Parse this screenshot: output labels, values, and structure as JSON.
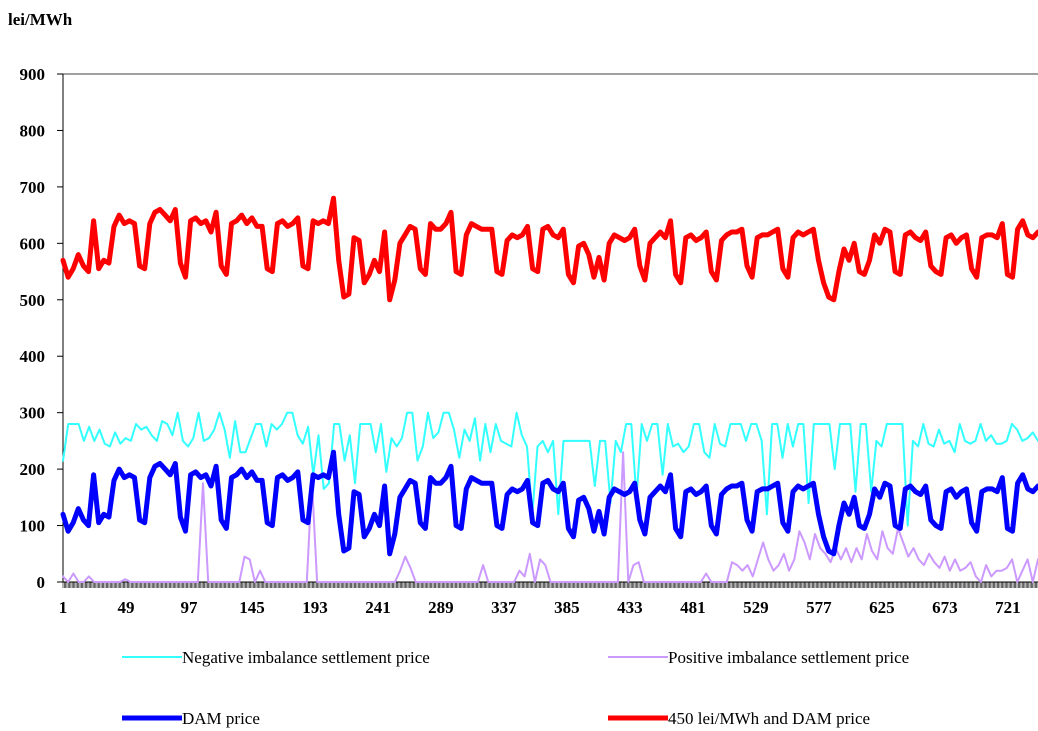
{
  "chart_data": {
    "type": "line",
    "ylabel": "lei/MWh",
    "ylim": [
      0,
      900
    ],
    "yticks": [
      0,
      100,
      200,
      300,
      400,
      500,
      600,
      700,
      800,
      900
    ],
    "xlim": [
      1,
      744
    ],
    "xticks": [
      1,
      49,
      97,
      145,
      193,
      241,
      289,
      337,
      385,
      433,
      481,
      529,
      577,
      625,
      673,
      721
    ],
    "grid": false,
    "legend_position": "bottom",
    "series": [
      {
        "name": "Negative imbalance settlement price",
        "color": "#33FFFF",
        "values": [
          215,
          280,
          280,
          280,
          250,
          275,
          250,
          270,
          245,
          240,
          265,
          245,
          255,
          250,
          280,
          270,
          275,
          260,
          250,
          285,
          280,
          260,
          300,
          250,
          240,
          255,
          300,
          250,
          255,
          270,
          300,
          270,
          220,
          285,
          230,
          230,
          255,
          280,
          280,
          240,
          280,
          270,
          280,
          300,
          300,
          260,
          245,
          275,
          190,
          260,
          165,
          175,
          280,
          280,
          215,
          260,
          175,
          280,
          280,
          280,
          230,
          280,
          195,
          255,
          240,
          255,
          300,
          300,
          215,
          240,
          300,
          255,
          265,
          300,
          300,
          270,
          220,
          270,
          250,
          290,
          215,
          280,
          230,
          280,
          250,
          245,
          240,
          300,
          260,
          240,
          120,
          240,
          250,
          230,
          250,
          120,
          250,
          250,
          250,
          250,
          250,
          250,
          170,
          250,
          250,
          140,
          250,
          230,
          280,
          280,
          150,
          280,
          250,
          280,
          280,
          190,
          280,
          240,
          245,
          230,
          240,
          280,
          280,
          230,
          220,
          280,
          245,
          240,
          280,
          280,
          280,
          250,
          280,
          280,
          250,
          120,
          280,
          280,
          220,
          280,
          240,
          280,
          280,
          140,
          280,
          280,
          280,
          280,
          200,
          280,
          280,
          280,
          160,
          280,
          280,
          160,
          250,
          240,
          280,
          280,
          280,
          280,
          100,
          250,
          240,
          280,
          245,
          240,
          270,
          245,
          250,
          230,
          280,
          250,
          245,
          250,
          280,
          250,
          260,
          245,
          245,
          250,
          280,
          270,
          250,
          255,
          265,
          250
        ]
      },
      {
        "name": "Positive imbalance settlement price",
        "color": "#CC99FF",
        "values": [
          10,
          0,
          15,
          0,
          0,
          10,
          0,
          0,
          0,
          0,
          0,
          0,
          5,
          0,
          0,
          0,
          0,
          0,
          0,
          0,
          0,
          0,
          0,
          0,
          0,
          0,
          0,
          175,
          0,
          0,
          0,
          0,
          0,
          0,
          0,
          45,
          40,
          0,
          20,
          0,
          0,
          0,
          0,
          0,
          0,
          0,
          0,
          0,
          180,
          0,
          0,
          0,
          0,
          0,
          0,
          0,
          0,
          0,
          0,
          0,
          0,
          0,
          0,
          0,
          0,
          20,
          45,
          25,
          0,
          0,
          0,
          0,
          0,
          0,
          0,
          0,
          0,
          0,
          0,
          0,
          0,
          30,
          0,
          0,
          0,
          0,
          0,
          0,
          20,
          10,
          50,
          0,
          40,
          30,
          0,
          0,
          0,
          0,
          0,
          0,
          0,
          0,
          0,
          0,
          0,
          0,
          0,
          0,
          230,
          0,
          30,
          35,
          0,
          0,
          0,
          0,
          0,
          0,
          0,
          0,
          0,
          0,
          0,
          0,
          15,
          0,
          0,
          0,
          0,
          35,
          30,
          20,
          30,
          10,
          40,
          70,
          40,
          20,
          30,
          50,
          20,
          40,
          90,
          70,
          40,
          85,
          60,
          50,
          35,
          60,
          40,
          60,
          35,
          60,
          40,
          85,
          55,
          40,
          90,
          60,
          50,
          95,
          70,
          45,
          60,
          40,
          30,
          50,
          35,
          25,
          45,
          20,
          40,
          20,
          25,
          35,
          10,
          0,
          30,
          10,
          20,
          20,
          25,
          40,
          0,
          20,
          40,
          0,
          40
        ]
      },
      {
        "name": "DAM price",
        "color": "#0000FF",
        "values": [
          120,
          90,
          105,
          130,
          110,
          100,
          190,
          105,
          120,
          115,
          180,
          200,
          185,
          190,
          185,
          110,
          105,
          185,
          205,
          210,
          200,
          190,
          210,
          115,
          90,
          190,
          195,
          185,
          190,
          170,
          205,
          110,
          95,
          185,
          190,
          200,
          185,
          195,
          180,
          180,
          105,
          100,
          185,
          190,
          180,
          185,
          195,
          110,
          105,
          190,
          185,
          190,
          185,
          230,
          120,
          55,
          60,
          160,
          155,
          80,
          95,
          120,
          100,
          170,
          50,
          85,
          150,
          165,
          180,
          175,
          105,
          95,
          185,
          175,
          175,
          185,
          205,
          100,
          95,
          165,
          185,
          180,
          175,
          175,
          175,
          100,
          95,
          155,
          165,
          160,
          165,
          180,
          105,
          100,
          175,
          180,
          165,
          160,
          175,
          95,
          80,
          145,
          150,
          130,
          90,
          125,
          85,
          150,
          165,
          160,
          155,
          160,
          175,
          110,
          85,
          150,
          160,
          170,
          160,
          190,
          95,
          80,
          160,
          165,
          155,
          160,
          170,
          100,
          85,
          155,
          165,
          170,
          170,
          175,
          110,
          90,
          160,
          165,
          165,
          170,
          175,
          105,
          90,
          160,
          170,
          165,
          170,
          175,
          120,
          80,
          55,
          50,
          100,
          140,
          120,
          150,
          100,
          95,
          120,
          165,
          150,
          175,
          170,
          100,
          95,
          165,
          170,
          160,
          155,
          170,
          110,
          100,
          95,
          160,
          165,
          150,
          160,
          165,
          105,
          90,
          160,
          165,
          165,
          160,
          185,
          95,
          90,
          175,
          190,
          165,
          160,
          170
        ]
      },
      {
        "name": "450 lei/MWh and DAM price",
        "color": "#FF0000",
        "values": [
          570,
          540,
          555,
          580,
          560,
          550,
          640,
          555,
          570,
          565,
          630,
          650,
          635,
          640,
          635,
          560,
          555,
          635,
          655,
          660,
          650,
          640,
          660,
          565,
          540,
          640,
          645,
          635,
          640,
          620,
          655,
          560,
          545,
          635,
          640,
          650,
          635,
          645,
          630,
          630,
          555,
          550,
          635,
          640,
          630,
          635,
          645,
          560,
          555,
          640,
          635,
          640,
          635,
          680,
          570,
          505,
          510,
          610,
          605,
          530,
          545,
          570,
          550,
          620,
          500,
          535,
          600,
          615,
          630,
          625,
          555,
          545,
          635,
          625,
          625,
          635,
          655,
          550,
          545,
          615,
          635,
          630,
          625,
          625,
          625,
          550,
          545,
          605,
          615,
          610,
          615,
          630,
          555,
          550,
          625,
          630,
          615,
          610,
          625,
          545,
          530,
          595,
          600,
          580,
          540,
          575,
          535,
          600,
          615,
          610,
          605,
          610,
          625,
          560,
          535,
          600,
          610,
          620,
          610,
          640,
          545,
          530,
          610,
          615,
          605,
          610,
          620,
          550,
          535,
          605,
          615,
          620,
          620,
          625,
          560,
          540,
          610,
          615,
          615,
          620,
          625,
          555,
          540,
          610,
          620,
          615,
          620,
          625,
          570,
          530,
          505,
          500,
          550,
          590,
          570,
          600,
          550,
          545,
          570,
          615,
          600,
          625,
          620,
          550,
          545,
          615,
          620,
          610,
          605,
          620,
          560,
          550,
          545,
          610,
          615,
          600,
          610,
          615,
          555,
          540,
          610,
          615,
          615,
          610,
          635,
          545,
          540,
          625,
          640,
          615,
          610,
          620
        ]
      }
    ]
  }
}
